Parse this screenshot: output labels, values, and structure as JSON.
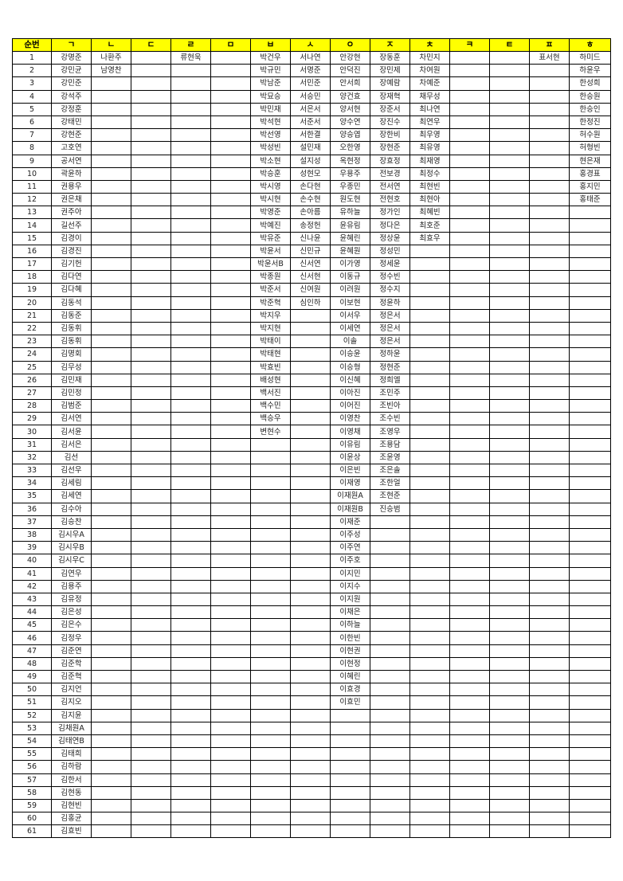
{
  "header": {
    "number_label": "순번"
  },
  "colors": {
    "header_background": "#ffff00",
    "border": "#000000"
  },
  "row_count": 61,
  "columns": [
    {
      "label": "ㄱ",
      "names": [
        "강명준",
        "강민균",
        "강민준",
        "강석주",
        "강정훈",
        "강태민",
        "강현준",
        "고호연",
        "공서연",
        "곽윤하",
        "권용우",
        "권은채",
        "권주아",
        "길선주",
        "김경이",
        "김경진",
        "김기헌",
        "김다연",
        "김다혜",
        "김동석",
        "김동준",
        "김동휘",
        "김동휘",
        "김명회",
        "김무성",
        "김민재",
        "김민정",
        "김범준",
        "김서연",
        "김서윤",
        "김서은",
        "김선",
        "김선우",
        "김세림",
        "김세연",
        "김수아",
        "김승찬",
        "김시우A",
        "김시우B",
        "김시우C",
        "김연우",
        "김용주",
        "김유정",
        "김은성",
        "김은수",
        "김정우",
        "김준연",
        "김준학",
        "김준혁",
        "김지언",
        "김지오",
        "김지윤",
        "김채원A",
        "김태연B",
        "김태희",
        "김하람",
        "김한서",
        "김현동",
        "김현빈",
        "김홍균",
        "김효빈"
      ]
    },
    {
      "label": "ㄴ",
      "names": [
        "나환주",
        "남영찬"
      ]
    },
    {
      "label": "ㄷ",
      "names": []
    },
    {
      "label": "ㄹ",
      "names": [
        "류현욱"
      ]
    },
    {
      "label": "ㅁ",
      "names": []
    },
    {
      "label": "ㅂ",
      "names": [
        "박건우",
        "박규민",
        "박남준",
        "박묘승",
        "박민재",
        "박석현",
        "박선영",
        "박성빈",
        "박소현",
        "박승훈",
        "박시영",
        "박시현",
        "박영준",
        "박예진",
        "박유준",
        "박윤서",
        "박윤서B",
        "박종원",
        "박준서",
        "박준혁",
        "박지우",
        "박지현",
        "박태이",
        "박태현",
        "박효빈",
        "배성현",
        "백서진",
        "백수민",
        "백승우",
        "변현수"
      ]
    },
    {
      "label": "ㅅ",
      "names": [
        "서나연",
        "서명준",
        "서민준",
        "서승민",
        "서은서",
        "서준서",
        "서한결",
        "설민재",
        "설지성",
        "성현모",
        "손다현",
        "손수현",
        "손아름",
        "송정헌",
        "신나윤",
        "신민규",
        "신서연",
        "신서현",
        "신여원",
        "심인하"
      ]
    },
    {
      "label": "ㅇ",
      "names": [
        "안강현",
        "안덕진",
        "안서희",
        "양건효",
        "양서현",
        "양수연",
        "양승엽",
        "오한영",
        "옥현정",
        "우용주",
        "우종민",
        "원도현",
        "유하늘",
        "윤유림",
        "윤혜린",
        "윤혜원",
        "이가영",
        "이동규",
        "이려원",
        "이보현",
        "이서우",
        "이세연",
        "이솔",
        "이승윤",
        "이승형",
        "이신혜",
        "이아진",
        "이어진",
        "이영찬",
        "이영채",
        "이유림",
        "이윤상",
        "이은빈",
        "이재영",
        "이재원A",
        "이재원B",
        "이재준",
        "이주성",
        "이주연",
        "이주호",
        "이지민",
        "이지수",
        "이지원",
        "이채은",
        "이하늘",
        "이한빈",
        "이현권",
        "이현정",
        "이혜린",
        "이효경",
        "이효민"
      ]
    },
    {
      "label": "ㅈ",
      "names": [
        "장동훈",
        "장민제",
        "장예람",
        "장재혁",
        "장준서",
        "장진수",
        "장한비",
        "장현준",
        "장효정",
        "전보경",
        "전서연",
        "전현호",
        "정가인",
        "정다은",
        "정상윤",
        "정성민",
        "정세윤",
        "정수빈",
        "정수지",
        "정윤하",
        "정은서",
        "정은서",
        "정은서",
        "정하윤",
        "정현준",
        "정희엘",
        "조민주",
        "조빈아",
        "조수빈",
        "조영우",
        "조용담",
        "조윤영",
        "조은솔",
        "조한얼",
        "조현준",
        "진승범"
      ]
    },
    {
      "label": "ㅊ",
      "names": [
        "차민지",
        "차여원",
        "차예준",
        "채무성",
        "최나연",
        "최연우",
        "최우영",
        "최유영",
        "최재영",
        "최정수",
        "최현빈",
        "최현아",
        "최혜빈",
        "최호준",
        "최효우"
      ]
    },
    {
      "label": "ㅋ",
      "names": []
    },
    {
      "label": "ㅌ",
      "names": []
    },
    {
      "label": "ㅍ",
      "names": [
        "표서현"
      ]
    },
    {
      "label": "ㅎ",
      "names": [
        "하미드",
        "하윤우",
        "한성희",
        "한승원",
        "한승인",
        "한정진",
        "허수원",
        "허형빈",
        "현은재",
        "홍경표",
        "홍지민",
        "홍태준"
      ]
    }
  ]
}
